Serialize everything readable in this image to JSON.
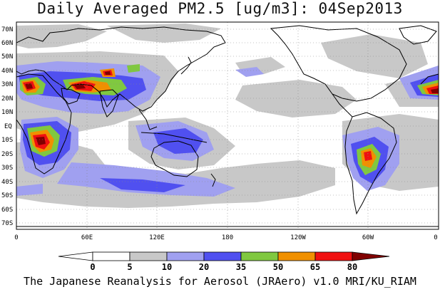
{
  "title": "Daily Averaged PM2.5 [ug/m3]: 04Sep2013",
  "footer": "The Japanese Reanalysis for Aerosol (JRAero) v1.0 MRI/KU_RIAM",
  "map": {
    "lat_labels": [
      "70N",
      "60N",
      "50N",
      "40N",
      "30N",
      "20N",
      "10N",
      "EQ",
      "10S",
      "20S",
      "30S",
      "40S",
      "50S",
      "60S",
      "70S"
    ],
    "lon_labels": [
      "0",
      "60E",
      "120E",
      "180",
      "120W",
      "60W",
      "0"
    ]
  },
  "colorbar": {
    "levels": [
      "0",
      "5",
      "10",
      "20",
      "35",
      "50",
      "65",
      "80"
    ],
    "colors": [
      "#ffffff",
      "#c8c8c8",
      "#a0a0f0",
      "#5050f0",
      "#80c840",
      "#f09000",
      "#f01010",
      "#800000"
    ]
  },
  "palette": {
    "c5": "#c8c8c8",
    "c10": "#a0a0f0",
    "c20": "#5050f0",
    "c35": "#80c840",
    "c50": "#f09000",
    "c65": "#f01010",
    "c80": "#800000",
    "coast": "#000000"
  }
}
